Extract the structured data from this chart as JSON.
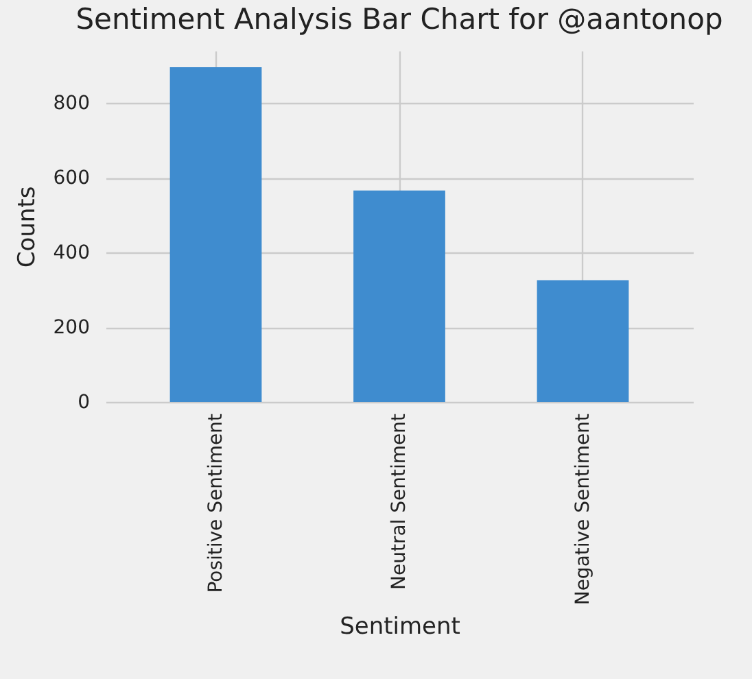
{
  "chart_data": {
    "type": "bar",
    "title": "Sentiment Analysis Bar Chart for @aantonop",
    "xlabel": "Sentiment",
    "ylabel": "Counts",
    "categories": [
      "Positive Sentiment",
      "Neutral Sentiment",
      "Negative Sentiment"
    ],
    "values": [
      896,
      566,
      326
    ],
    "color": "#3f8ccf",
    "ylim": [
      0,
      940
    ],
    "yticks": [
      0,
      200,
      400,
      600,
      800
    ],
    "grid": true
  }
}
